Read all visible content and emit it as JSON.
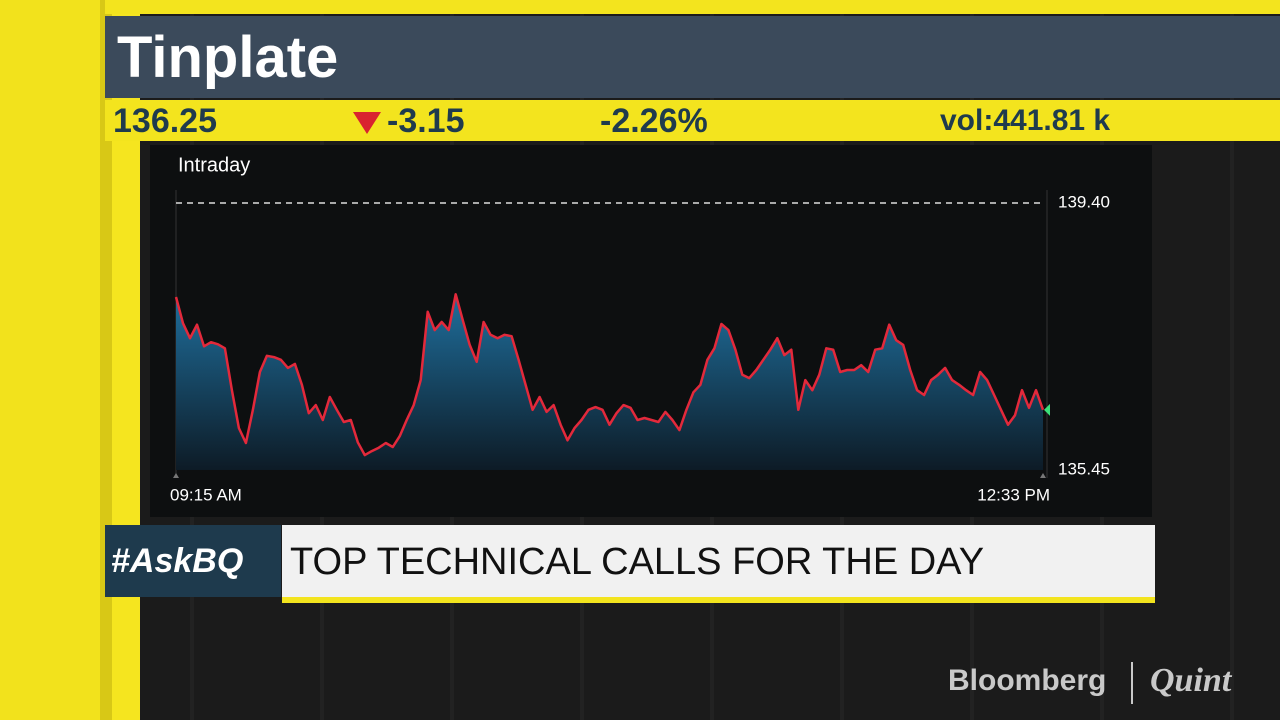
{
  "header": {
    "title": "Tinplate",
    "price": "136.25",
    "change": "-3.15",
    "change_pct": "-2.26%",
    "volume": "vol:441.81 k"
  },
  "chart_data": {
    "type": "line",
    "title": "Intraday",
    "categories": [
      "09:15 AM",
      null,
      null,
      null,
      null,
      null,
      null,
      null,
      null,
      null,
      null,
      null,
      null,
      null,
      null,
      null,
      null,
      null,
      null,
      null,
      null,
      null,
      null,
      null,
      null,
      null,
      null,
      null,
      null,
      null,
      null,
      null,
      null,
      null,
      null,
      null,
      null,
      null,
      null,
      null,
      null,
      null,
      null,
      null,
      null,
      null,
      null,
      null,
      null,
      null,
      null,
      null,
      null,
      null,
      null,
      null,
      null,
      null,
      null,
      null,
      null,
      null,
      null,
      null,
      null,
      null,
      null,
      null,
      null,
      null,
      null,
      null,
      null,
      null,
      null,
      null,
      null,
      null,
      null,
      null,
      null,
      null,
      null,
      null,
      null,
      null,
      null,
      null,
      null,
      null,
      null,
      null,
      null,
      null,
      null,
      null,
      null,
      null,
      null,
      null,
      null,
      null,
      null,
      null,
      null,
      null,
      null,
      null,
      null,
      null,
      null,
      null,
      null,
      null,
      null,
      null,
      null,
      null,
      null,
      null,
      null,
      null,
      null,
      null,
      "12:33 PM"
    ],
    "values": [
      138.01,
      137.62,
      137.4,
      137.6,
      137.28,
      137.34,
      137.31,
      137.25,
      136.63,
      136.07,
      135.85,
      136.34,
      136.9,
      137.14,
      137.12,
      137.08,
      136.96,
      137.02,
      136.71,
      136.29,
      136.41,
      136.19,
      136.53,
      136.34,
      136.16,
      136.19,
      135.86,
      135.67,
      135.73,
      135.78,
      135.85,
      135.79,
      135.95,
      136.19,
      136.41,
      136.78,
      137.79,
      137.52,
      137.64,
      137.52,
      138.05,
      137.67,
      137.3,
      137.05,
      137.64,
      137.45,
      137.4,
      137.45,
      137.43,
      137.08,
      136.71,
      136.34,
      136.53,
      136.31,
      136.41,
      136.12,
      135.89,
      136.07,
      136.19,
      136.34,
      136.38,
      136.34,
      136.12,
      136.29,
      136.41,
      136.37,
      136.19,
      136.22,
      136.19,
      136.16,
      136.31,
      136.19,
      136.04,
      136.34,
      136.6,
      136.71,
      137.08,
      137.25,
      137.61,
      137.52,
      137.23,
      136.86,
      136.81,
      136.93,
      137.08,
      137.23,
      137.4,
      137.15,
      137.23,
      136.34,
      136.78,
      136.63,
      136.86,
      137.25,
      137.23,
      136.9,
      136.93,
      136.93,
      137.0,
      136.9,
      137.23,
      137.25,
      137.6,
      137.37,
      137.3,
      136.93,
      136.63,
      136.56,
      136.78,
      136.86,
      136.96,
      136.78,
      136.71,
      136.63,
      136.56,
      136.9,
      136.78,
      136.56,
      136.34,
      136.12,
      136.26,
      136.63,
      136.37,
      136.63,
      136.34
    ],
    "color": "#e3293b",
    "ylim": [
      135.45,
      139.4
    ],
    "yticks": [
      {
        "value": 139.4,
        "label": "139.40"
      },
      {
        "value": 135.45,
        "label": "135.45"
      }
    ],
    "grid": true
  },
  "banner": {
    "tag": "#AskBQ",
    "headline": "TOP TECHNICAL CALLS FOR THE DAY"
  },
  "logo": {
    "left": "Bloomberg",
    "right": "Quint"
  }
}
